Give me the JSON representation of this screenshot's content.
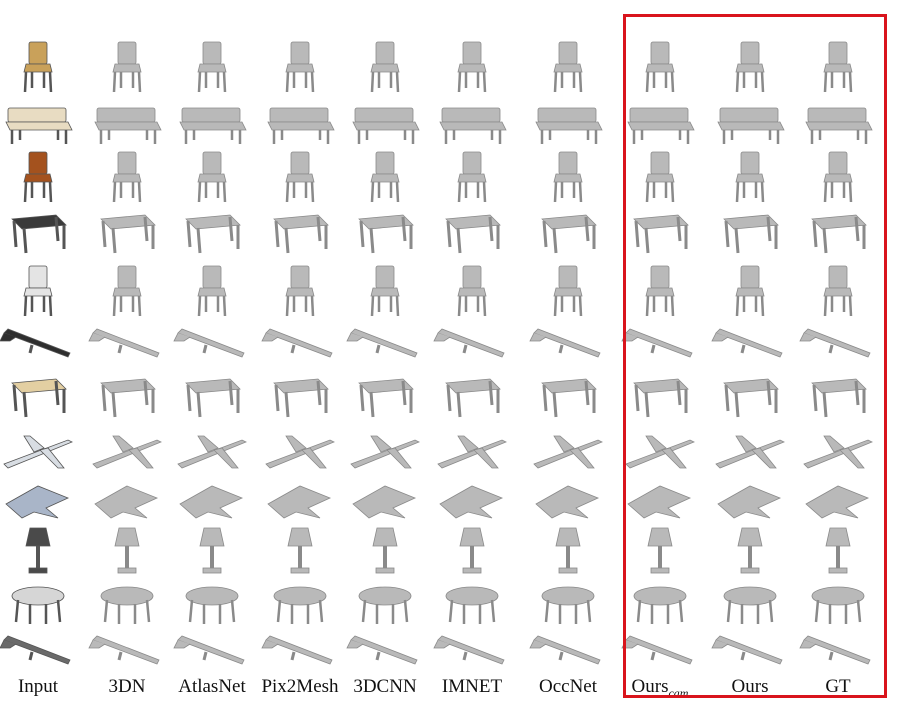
{
  "figure": {
    "columns": [
      {
        "key": "input",
        "label": "Input"
      },
      {
        "key": "3dn",
        "label": "3DN"
      },
      {
        "key": "atlasnet",
        "label": "AtlasNet"
      },
      {
        "key": "pix2mesh",
        "label": "Pix2Mesh"
      },
      {
        "key": "3dcnn",
        "label": "3DCNN"
      },
      {
        "key": "imnet",
        "label": "IMNET"
      },
      {
        "key": "occnet",
        "label": "OccNet"
      },
      {
        "key": "ours_cam",
        "label": "Ours",
        "subscript": "cam"
      },
      {
        "key": "ours",
        "label": "Ours"
      },
      {
        "key": "gt",
        "label": "GT"
      }
    ],
    "rows": [
      {
        "object": "chair-icon"
      },
      {
        "object": "bench-icon"
      },
      {
        "object": "chair-icon"
      },
      {
        "object": "table-icon"
      },
      {
        "object": "chair-icon"
      },
      {
        "object": "rifle-icon"
      },
      {
        "object": "table-icon"
      },
      {
        "object": "airplane-icon"
      },
      {
        "object": "jet-icon"
      },
      {
        "object": "lamp-icon"
      },
      {
        "object": "round-table-icon"
      },
      {
        "object": "rifle-icon"
      }
    ],
    "input_colors": [
      "#c9a15a",
      "#e8dcc2",
      "#a4521e",
      "#3a3a3a",
      "#e4e4e4",
      "#2e2e2e",
      "#e3cfa2",
      "#d8dde3",
      "#a9b5c8",
      "#4a4a4a",
      "#d6d6d6",
      "#6a6a6a"
    ],
    "render_color": "#b9b9b9",
    "highlight_color": "#d9141c"
  }
}
